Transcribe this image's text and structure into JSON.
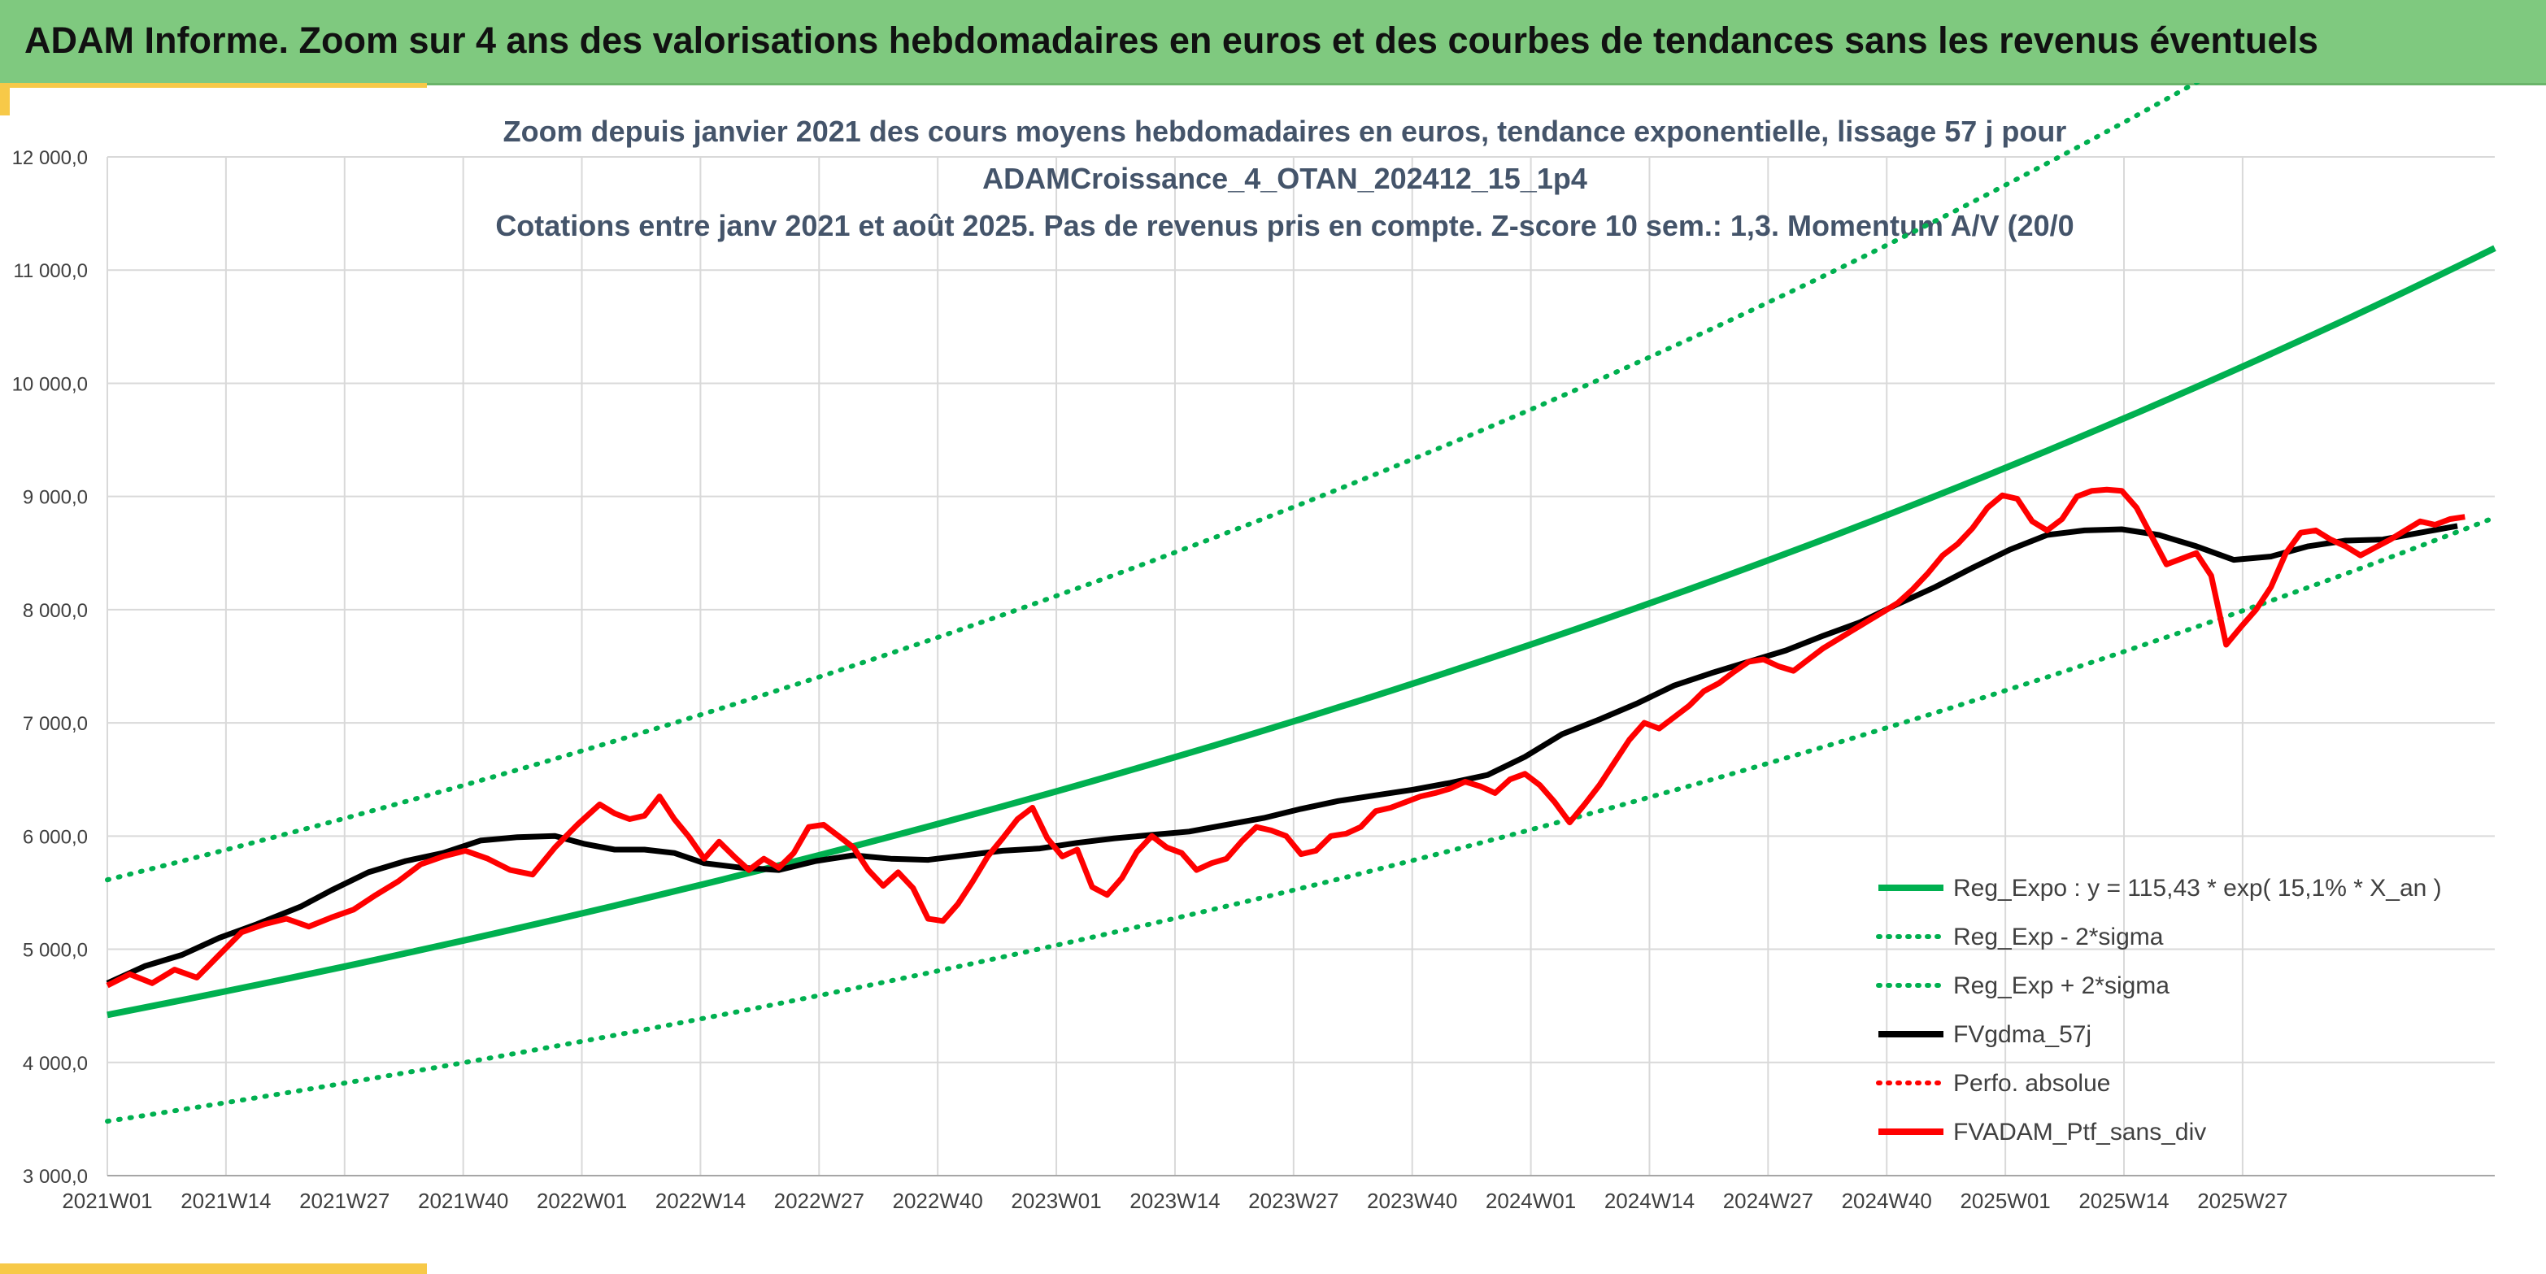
{
  "banner": {
    "title": "ADAM Informe. Zoom sur 4 ans des valorisations hebdomadaires en euros et des courbes de tendances sans les revenus éventuels"
  },
  "colors": {
    "banner_bg": "#7fc97f",
    "accent": "#f7c948",
    "trend": "#00b050",
    "fvgdma": "#000000",
    "ptf": "#ff0000",
    "title_text": "#44546a"
  },
  "chart_data": {
    "type": "line",
    "title_lines": [
      "Zoom depuis janvier 2021 des cours moyens hebdomadaires en euros, tendance exponentielle, lissage 57 j pour",
      "ADAMCroissance_4_OTAN_202412_15_1p4",
      "Cotations entre janv 2021 et août 2025. Pas de revenus pris en compte. Z-score 10 sem.: 1,3. Momentum A/V (20/0"
    ],
    "x_categories": [
      "2021W01",
      "2021W14",
      "2021W27",
      "2021W40",
      "2022W01",
      "2022W14",
      "2022W27",
      "2022W40",
      "2023W01",
      "2023W14",
      "2023W27",
      "2023W40",
      "2024W01",
      "2024W14",
      "2024W27",
      "2024W40",
      "2025W01",
      "2025W14",
      "2025W27"
    ],
    "y_ticks": [
      "3 000,0",
      "4 000,0",
      "5 000,0",
      "6 000,0",
      "7 000,0",
      "8 000,0",
      "9 000,0",
      "10 000,0",
      "11 000,0",
      "12 000,0"
    ],
    "ylim": [
      3000,
      12000
    ],
    "grid": true,
    "legend_position": "bottom-right",
    "trend": {
      "a": 115.43,
      "rate": 0.151,
      "sigma_band": 1.27,
      "start_value": 4420
    },
    "series": [
      {
        "name": "Reg_Expo : y = 115,43 * exp( 15,1% *  X_an )",
        "style": "solid",
        "color": "#00b050",
        "kind": "trend"
      },
      {
        "name": "Reg_Exp - 2*sigma",
        "style": "dotted",
        "color": "#00b050",
        "kind": "trend_low"
      },
      {
        "name": "Reg_Exp + 2*sigma",
        "style": "dotted",
        "color": "#00b050",
        "kind": "trend_high"
      },
      {
        "name": "FVgdma_57j",
        "style": "solid",
        "color": "#000000",
        "kind": "fvgdma",
        "points": [
          [
            0,
            4700
          ],
          [
            5,
            4850
          ],
          [
            10,
            4950
          ],
          [
            15,
            5100
          ],
          [
            20,
            5220
          ],
          [
            26,
            5380
          ],
          [
            30,
            5520
          ],
          [
            35,
            5680
          ],
          [
            40,
            5780
          ],
          [
            45,
            5850
          ],
          [
            50,
            5960
          ],
          [
            55,
            5990
          ],
          [
            60,
            6000
          ],
          [
            64,
            5930
          ],
          [
            68,
            5880
          ],
          [
            72,
            5880
          ],
          [
            76,
            5850
          ],
          [
            80,
            5760
          ],
          [
            85,
            5720
          ],
          [
            90,
            5700
          ],
          [
            95,
            5780
          ],
          [
            100,
            5830
          ],
          [
            105,
            5800
          ],
          [
            110,
            5790
          ],
          [
            115,
            5830
          ],
          [
            120,
            5870
          ],
          [
            125,
            5890
          ],
          [
            130,
            5940
          ],
          [
            135,
            5980
          ],
          [
            140,
            6010
          ],
          [
            145,
            6040
          ],
          [
            150,
            6100
          ],
          [
            155,
            6160
          ],
          [
            160,
            6240
          ],
          [
            165,
            6310
          ],
          [
            170,
            6360
          ],
          [
            175,
            6410
          ],
          [
            180,
            6470
          ],
          [
            185,
            6540
          ],
          [
            190,
            6700
          ],
          [
            195,
            6900
          ],
          [
            200,
            7030
          ],
          [
            205,
            7170
          ],
          [
            210,
            7330
          ],
          [
            215,
            7440
          ],
          [
            220,
            7540
          ],
          [
            225,
            7640
          ],
          [
            230,
            7770
          ],
          [
            235,
            7890
          ],
          [
            240,
            8050
          ],
          [
            245,
            8200
          ],
          [
            250,
            8370
          ],
          [
            255,
            8530
          ],
          [
            260,
            8660
          ],
          [
            265,
            8700
          ],
          [
            270,
            8710
          ],
          [
            275,
            8660
          ],
          [
            280,
            8560
          ],
          [
            285,
            8440
          ],
          [
            290,
            8470
          ],
          [
            295,
            8560
          ],
          [
            300,
            8610
          ],
          [
            305,
            8620
          ],
          [
            310,
            8680
          ],
          [
            315,
            8740
          ]
        ]
      },
      {
        "name": "Perfo. absolue",
        "style": "dotted",
        "color": "#ff0000",
        "kind": "legend_only"
      },
      {
        "name": "FVADAM_Ptf_sans_div",
        "style": "solid",
        "color": "#ff0000",
        "kind": "ptf",
        "points": [
          [
            0,
            4680
          ],
          [
            3,
            4780
          ],
          [
            6,
            4700
          ],
          [
            9,
            4820
          ],
          [
            12,
            4750
          ],
          [
            15,
            4950
          ],
          [
            18,
            5150
          ],
          [
            21,
            5220
          ],
          [
            24,
            5270
          ],
          [
            27,
            5200
          ],
          [
            30,
            5280
          ],
          [
            33,
            5350
          ],
          [
            36,
            5480
          ],
          [
            39,
            5600
          ],
          [
            42,
            5750
          ],
          [
            45,
            5820
          ],
          [
            48,
            5870
          ],
          [
            51,
            5800
          ],
          [
            54,
            5700
          ],
          [
            57,
            5660
          ],
          [
            60,
            5900
          ],
          [
            63,
            6100
          ],
          [
            66,
            6280
          ],
          [
            68,
            6200
          ],
          [
            70,
            6150
          ],
          [
            72,
            6180
          ],
          [
            74,
            6350
          ],
          [
            76,
            6150
          ],
          [
            78,
            5990
          ],
          [
            80,
            5800
          ],
          [
            82,
            5950
          ],
          [
            84,
            5820
          ],
          [
            86,
            5700
          ],
          [
            88,
            5800
          ],
          [
            90,
            5720
          ],
          [
            92,
            5850
          ],
          [
            94,
            6080
          ],
          [
            96,
            6100
          ],
          [
            98,
            6000
          ],
          [
            100,
            5900
          ],
          [
            102,
            5700
          ],
          [
            104,
            5560
          ],
          [
            106,
            5680
          ],
          [
            108,
            5540
          ],
          [
            110,
            5270
          ],
          [
            112,
            5250
          ],
          [
            114,
            5400
          ],
          [
            116,
            5600
          ],
          [
            118,
            5820
          ],
          [
            120,
            5980
          ],
          [
            122,
            6150
          ],
          [
            124,
            6250
          ],
          [
            126,
            5980
          ],
          [
            128,
            5820
          ],
          [
            130,
            5880
          ],
          [
            132,
            5550
          ],
          [
            134,
            5480
          ],
          [
            136,
            5630
          ],
          [
            138,
            5860
          ],
          [
            140,
            6000
          ],
          [
            142,
            5900
          ],
          [
            144,
            5850
          ],
          [
            146,
            5700
          ],
          [
            148,
            5760
          ],
          [
            150,
            5800
          ],
          [
            152,
            5950
          ],
          [
            154,
            6080
          ],
          [
            156,
            6050
          ],
          [
            158,
            6000
          ],
          [
            160,
            5840
          ],
          [
            162,
            5870
          ],
          [
            164,
            6000
          ],
          [
            166,
            6020
          ],
          [
            168,
            6080
          ],
          [
            170,
            6220
          ],
          [
            172,
            6250
          ],
          [
            174,
            6300
          ],
          [
            176,
            6350
          ],
          [
            178,
            6380
          ],
          [
            180,
            6420
          ],
          [
            182,
            6480
          ],
          [
            184,
            6440
          ],
          [
            186,
            6380
          ],
          [
            188,
            6500
          ],
          [
            190,
            6550
          ],
          [
            192,
            6450
          ],
          [
            194,
            6300
          ],
          [
            196,
            6120
          ],
          [
            198,
            6280
          ],
          [
            200,
            6450
          ],
          [
            202,
            6650
          ],
          [
            204,
            6850
          ],
          [
            206,
            7000
          ],
          [
            208,
            6950
          ],
          [
            210,
            7050
          ],
          [
            212,
            7150
          ],
          [
            214,
            7280
          ],
          [
            216,
            7350
          ],
          [
            218,
            7450
          ],
          [
            220,
            7540
          ],
          [
            222,
            7560
          ],
          [
            224,
            7500
          ],
          [
            226,
            7460
          ],
          [
            228,
            7560
          ],
          [
            230,
            7660
          ],
          [
            232,
            7740
          ],
          [
            234,
            7820
          ],
          [
            236,
            7900
          ],
          [
            238,
            7980
          ],
          [
            240,
            8060
          ],
          [
            242,
            8180
          ],
          [
            244,
            8320
          ],
          [
            246,
            8480
          ],
          [
            248,
            8580
          ],
          [
            250,
            8720
          ],
          [
            252,
            8900
          ],
          [
            254,
            9010
          ],
          [
            256,
            8980
          ],
          [
            258,
            8780
          ],
          [
            260,
            8700
          ],
          [
            262,
            8800
          ],
          [
            264,
            9000
          ],
          [
            266,
            9050
          ],
          [
            268,
            9060
          ],
          [
            270,
            9050
          ],
          [
            272,
            8900
          ],
          [
            274,
            8650
          ],
          [
            276,
            8400
          ],
          [
            278,
            8450
          ],
          [
            280,
            8500
          ],
          [
            282,
            8300
          ],
          [
            284,
            7690
          ],
          [
            286,
            7850
          ],
          [
            288,
            8000
          ],
          [
            290,
            8200
          ],
          [
            292,
            8500
          ],
          [
            294,
            8680
          ],
          [
            296,
            8700
          ],
          [
            298,
            8620
          ],
          [
            300,
            8560
          ],
          [
            302,
            8480
          ],
          [
            304,
            8550
          ],
          [
            306,
            8620
          ],
          [
            308,
            8700
          ],
          [
            310,
            8780
          ],
          [
            312,
            8750
          ],
          [
            314,
            8800
          ],
          [
            316,
            8820
          ]
        ]
      }
    ]
  }
}
